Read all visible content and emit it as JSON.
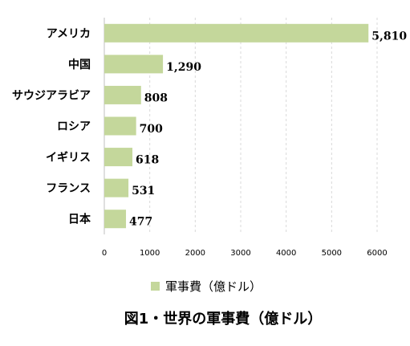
{
  "chart_data": {
    "type": "bar",
    "orientation": "horizontal",
    "categories": [
      "アメリカ",
      "中国",
      "サウジアラビア",
      "ロシア",
      "イギリス",
      "フランス",
      "日本"
    ],
    "series": [
      {
        "name": "軍事費（億ドル）",
        "values": [
          5810,
          1290,
          808,
          700,
          618,
          531,
          477
        ],
        "value_labels": [
          "5,810",
          "1,290",
          "808",
          "700",
          "618",
          "531",
          "477"
        ],
        "color": "#c4d79b"
      }
    ],
    "xlim": [
      0,
      6000
    ],
    "xticks": [
      0,
      1000,
      2000,
      3000,
      4000,
      5000,
      6000
    ],
    "grid": "vertical-dashed",
    "legend_placement": "bottom"
  },
  "caption": "図1・世界の軍事費（億ドル）",
  "colors": {
    "bar": "#c4d79b",
    "grid": "#d9d9d9",
    "axis": "#bfbfbf"
  }
}
